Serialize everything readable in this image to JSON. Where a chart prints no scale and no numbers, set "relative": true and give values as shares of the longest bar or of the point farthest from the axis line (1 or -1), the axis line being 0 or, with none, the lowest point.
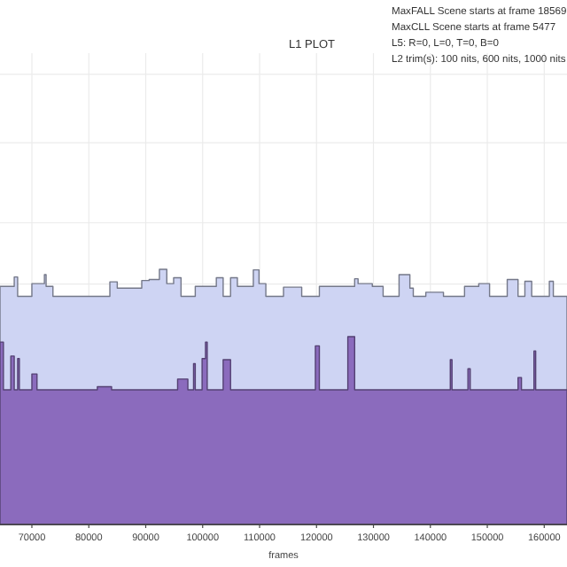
{
  "chart_data": {
    "type": "step",
    "title": "L1 PLOT",
    "xlabel": "frames",
    "relative": true,
    "grid": true,
    "annotations": [
      "MaxFALL Scene starts at frame 18569",
      "MaxCLL Scene starts at frame 5477",
      "L5: R=0, L=0, T=0, B=0",
      "L2 trim(s): 100 nits, 600 nits, 1000 nits"
    ],
    "xlim": [
      64400,
      164000
    ],
    "xticks": [
      70000,
      80000,
      90000,
      100000,
      110000,
      120000,
      130000,
      140000,
      150000,
      160000
    ],
    "series": [
      {
        "type": "area",
        "color": "#ced4f3",
        "x": [
          64400,
          66900,
          67500,
          70000,
          72200,
          72500,
          73700,
          83700,
          85000,
          89300,
          90600,
          92400,
          93700,
          94900,
          96200,
          98700,
          102400,
          103600,
          104900,
          106100,
          108900,
          109900,
          111100,
          114200,
          117400,
          120500,
          126700,
          127300,
          129800,
          131700,
          134500,
          136400,
          137000,
          139200,
          142300,
          146000,
          148500,
          150400,
          153500,
          155400,
          156600,
          157800,
          160900,
          161600,
          164000
        ],
        "values": [
          0.933,
          0.97,
          0.894,
          0.944,
          0.979,
          0.933,
          0.894,
          0.951,
          0.926,
          0.956,
          0.96,
          1.0,
          0.944,
          0.967,
          0.894,
          0.933,
          0.967,
          0.894,
          0.967,
          0.933,
          0.998,
          0.944,
          0.894,
          0.93,
          0.894,
          0.933,
          0.963,
          0.944,
          0.933,
          0.894,
          0.979,
          0.926,
          0.894,
          0.91,
          0.894,
          0.933,
          0.944,
          0.894,
          0.96,
          0.894,
          0.953,
          0.894,
          0.953,
          0.894,
          0.894
        ]
      },
      {
        "type": "area",
        "color": "#8b6bbd",
        "x": [
          64400,
          65000,
          66300,
          66900,
          67500,
          67800,
          70000,
          70900,
          81500,
          84000,
          95600,
          97400,
          98400,
          98700,
          99900,
          100500,
          100800,
          103600,
          104900,
          119800,
          120500,
          125500,
          126700,
          143500,
          143800,
          146600,
          147000,
          155400,
          156000,
          158200,
          158500,
          164000
        ],
        "values": [
          0.715,
          0.528,
          0.66,
          0.528,
          0.65,
          0.528,
          0.59,
          0.528,
          0.54,
          0.528,
          0.57,
          0.528,
          0.63,
          0.528,
          0.65,
          0.715,
          0.528,
          0.646,
          0.528,
          0.7,
          0.528,
          0.736,
          0.528,
          0.646,
          0.528,
          0.61,
          0.528,
          0.576,
          0.528,
          0.68,
          0.528,
          0.528
        ]
      }
    ]
  }
}
